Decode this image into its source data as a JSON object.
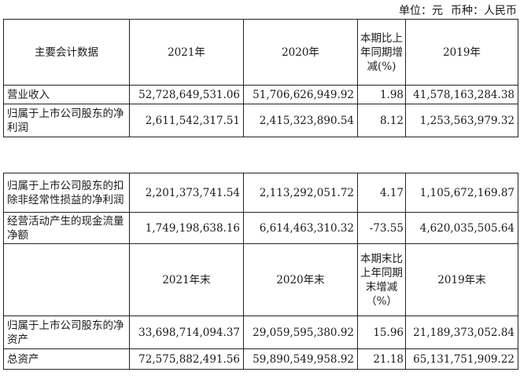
{
  "unit_line": {
    "unit_label": "单位：元",
    "currency_label": "币种：人民币"
  },
  "table1": {
    "header": {
      "col1": "主要会计数据",
      "col2": "2021年",
      "col3": "2020年",
      "col4": "本期比上年同期增减(%)",
      "col5": "2019年"
    },
    "rows": [
      {
        "label": "营业收入",
        "v2021": "52,728,649,531.06",
        "v2020": "51,706,626,949.92",
        "change": "1.98",
        "v2019": "41,578,163,284.38"
      },
      {
        "label": "归属于上市公司股东的净利润",
        "v2021": "2,611,542,317.51",
        "v2020": "2,415,323,890.54",
        "change": "8.12",
        "v2019": "1,253,563,979.32"
      }
    ]
  },
  "table2": {
    "rows_top": [
      {
        "label": "归属于上市公司股东的扣除非经常性损益的净利润",
        "v2021": "2,201,373,741.54",
        "v2020": "2,113,292,051.72",
        "change": "4.17",
        "v2019": "1,105,672,169.87"
      },
      {
        "label": "经营活动产生的现金流量净额",
        "v2021": "1,749,198,638.16",
        "v2020": "6,614,463,310.32",
        "change": "-73.55",
        "v2019": "4,620,035,505.64"
      }
    ],
    "header2": {
      "col1": "",
      "col2": "2021年末",
      "col3": "2020年末",
      "col4": "本期末比上年同期末增减（%）",
      "col5": "2019年末"
    },
    "rows_bottom": [
      {
        "label": "归属于上市公司股东的净资产",
        "v2021": "33,698,714,094.37",
        "v2020": "29,059,595,380.92",
        "change": "15.96",
        "v2019": "21,189,373,052.84"
      },
      {
        "label": "总资产",
        "v2021": "72,575,882,491.56",
        "v2020": "59,890,549,958.92",
        "change": "21.18",
        "v2019": "65,131,751,909.22"
      }
    ]
  }
}
